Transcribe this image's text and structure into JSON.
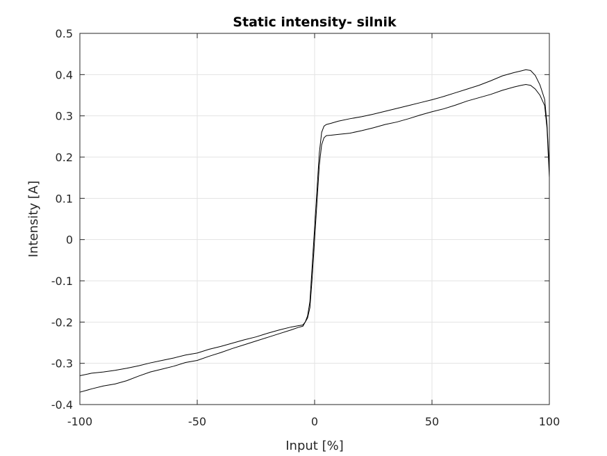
{
  "chart_data": {
    "type": "line",
    "title": "Static intensity- silnik",
    "xlabel": "Input [%]",
    "ylabel": "Intensity [A]",
    "xlim": [
      -100,
      100
    ],
    "ylim": [
      -0.4,
      0.5
    ],
    "xticks": [
      -100,
      -50,
      0,
      50,
      100
    ],
    "yticks": [
      -0.4,
      -0.3,
      -0.2,
      -0.1,
      0,
      0.1,
      0.2,
      0.3,
      0.4,
      0.5
    ],
    "grid": true,
    "legend": "none",
    "line_color": "#000000",
    "series": [
      {
        "x": [
          -100,
          -95,
          -90,
          -85,
          -80,
          -75,
          -70,
          -65,
          -60,
          -55,
          -50,
          -45,
          -40,
          -35,
          -30,
          -25,
          -20,
          -15,
          -10,
          -7,
          -5,
          -4,
          -3,
          -2,
          -1,
          0,
          1,
          2,
          3,
          4,
          5,
          7,
          10,
          15,
          20,
          25,
          30,
          35,
          40,
          45,
          50,
          55,
          60,
          65,
          70,
          75,
          80,
          85,
          88,
          90,
          92,
          94,
          96,
          98,
          99,
          100
        ],
        "y": [
          -0.33,
          -0.324,
          -0.321,
          -0.317,
          -0.312,
          -0.306,
          -0.299,
          -0.293,
          -0.287,
          -0.28,
          -0.275,
          -0.266,
          -0.259,
          -0.251,
          -0.243,
          -0.236,
          -0.227,
          -0.219,
          -0.212,
          -0.209,
          -0.207,
          -0.2,
          -0.185,
          -0.15,
          -0.06,
          0.03,
          0.12,
          0.21,
          0.26,
          0.275,
          0.279,
          0.282,
          0.287,
          0.293,
          0.298,
          0.304,
          0.311,
          0.318,
          0.325,
          0.332,
          0.339,
          0.347,
          0.356,
          0.365,
          0.374,
          0.385,
          0.397,
          0.405,
          0.409,
          0.412,
          0.41,
          0.398,
          0.375,
          0.34,
          0.28,
          0.17
        ]
      },
      {
        "x": [
          -100,
          -95,
          -90,
          -85,
          -80,
          -75,
          -70,
          -65,
          -60,
          -55,
          -50,
          -45,
          -40,
          -35,
          -30,
          -25,
          -20,
          -15,
          -10,
          -7,
          -5,
          -4,
          -3,
          -2,
          -1,
          0,
          1,
          2,
          3,
          4,
          5,
          7,
          10,
          15,
          20,
          25,
          30,
          35,
          40,
          45,
          50,
          55,
          60,
          65,
          70,
          75,
          80,
          85,
          88,
          90,
          92,
          94,
          96,
          98,
          99,
          100,
          100
        ],
        "y": [
          -0.37,
          -0.362,
          -0.355,
          -0.35,
          -0.342,
          -0.331,
          -0.321,
          -0.314,
          -0.307,
          -0.298,
          -0.293,
          -0.283,
          -0.274,
          -0.264,
          -0.255,
          -0.246,
          -0.237,
          -0.228,
          -0.219,
          -0.213,
          -0.21,
          -0.2,
          -0.19,
          -0.165,
          -0.09,
          0,
          0.09,
          0.18,
          0.23,
          0.247,
          0.252,
          0.253,
          0.255,
          0.258,
          0.264,
          0.271,
          0.279,
          0.285,
          0.293,
          0.302,
          0.31,
          0.317,
          0.326,
          0.336,
          0.344,
          0.352,
          0.362,
          0.37,
          0.374,
          0.376,
          0.374,
          0.365,
          0.35,
          0.325,
          0.27,
          0.15,
          0
        ]
      }
    ]
  }
}
